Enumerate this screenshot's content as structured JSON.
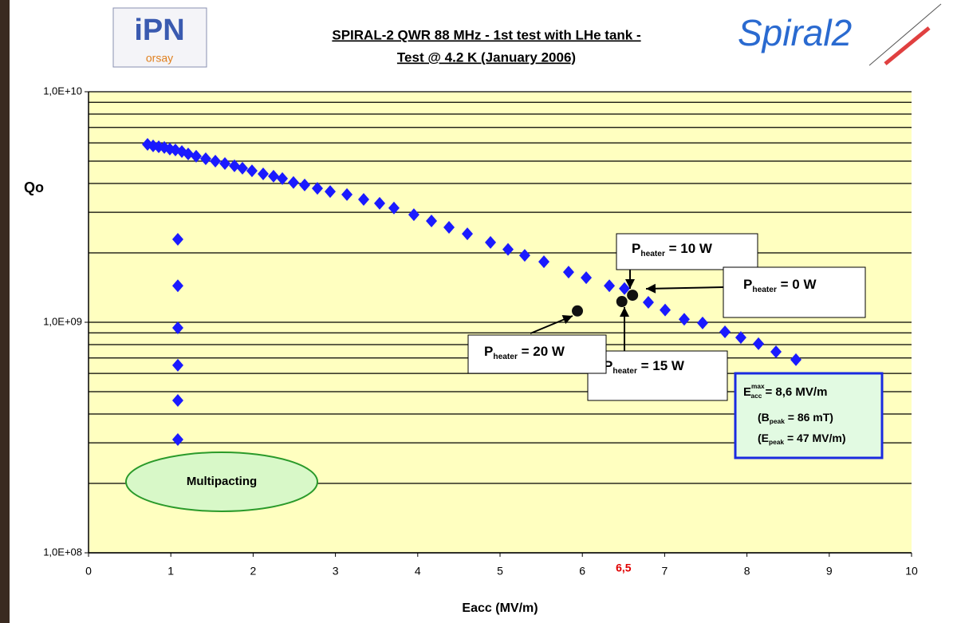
{
  "header": {
    "logo_left": {
      "main": "iPN",
      "sub": "orsay"
    },
    "logo_right": "Spiral2"
  },
  "chart_data": {
    "type": "scatter",
    "title": [
      "SPIRAL-2  QWR 88 MHz - 1st test with LHe tank -",
      "Test @ 4.2 K (January 2006)"
    ],
    "x_label": "Eacc (MV/m)",
    "y_label": "Qo",
    "log_y": true,
    "xlim": [
      0,
      10
    ],
    "xticks": [
      0,
      1,
      2,
      3,
      4,
      5,
      6,
      7,
      8,
      9,
      10
    ],
    "ylim": [
      100000000,
      10000000000
    ],
    "yticks": [
      {
        "value": 100000000,
        "label": "1,0E+08"
      },
      {
        "value": 1000000000,
        "label": "1,0E+09"
      },
      {
        "value": 10000000000,
        "label": "1,0E+10"
      }
    ],
    "minor_yticks": [
      200000000,
      300000000,
      400000000,
      500000000,
      600000000,
      700000000,
      800000000,
      900000000,
      2000000000,
      3000000000,
      4000000000,
      5000000000,
      6000000000,
      7000000000,
      8000000000,
      9000000000
    ],
    "grid": true,
    "plot_background": "#ffffc0",
    "x_marker": {
      "value": 6.5,
      "label": "6,5",
      "color": "#e00000"
    },
    "series": [
      {
        "color": "#1a1aff",
        "marker": "diamond",
        "x": [
          0.717,
          0.785,
          0.853,
          0.921,
          0.988,
          1.056,
          1.134,
          1.211,
          1.308,
          1.424,
          1.541,
          1.657,
          1.773,
          1.87,
          1.986,
          2.122,
          2.248,
          2.355,
          2.49,
          2.626,
          2.781,
          2.936,
          3.14,
          3.343,
          3.537,
          3.711,
          3.953,
          4.167,
          4.38,
          4.603,
          4.884,
          5.097,
          5.3,
          5.533,
          5.833,
          6.047,
          6.328,
          6.512,
          6.802,
          7.006,
          7.238,
          7.461,
          7.733,
          7.926,
          8.14,
          8.353,
          8.595
        ],
        "values": [
          5910000000,
          5820000000,
          5770000000,
          5730000000,
          5640000000,
          5590000000,
          5500000000,
          5370000000,
          5250000000,
          5120000000,
          5000000000,
          4880000000,
          4770000000,
          4660000000,
          4540000000,
          4400000000,
          4300000000,
          4200000000,
          4040000000,
          3940000000,
          3810000000,
          3690000000,
          3580000000,
          3410000000,
          3280000000,
          3130000000,
          2930000000,
          2750000000,
          2580000000,
          2420000000,
          2220000000,
          2070000000,
          1950000000,
          1830000000,
          1650000000,
          1560000000,
          1440000000,
          1400000000,
          1220000000,
          1130000000,
          1030000000,
          993000000,
          909000000,
          859000000,
          807000000,
          745000000,
          688000000
        ]
      },
      {
        "color": "#1a1aff",
        "marker": "diamond",
        "x": [
          1.085,
          1.085,
          1.085,
          1.085,
          1.085,
          1.085
        ],
        "values": [
          2290000000,
          1440000000,
          946000000,
          651000000,
          458000000,
          310000000
        ]
      },
      {
        "color": "#111111",
        "marker": "circle",
        "x": [
          5.94,
          6.48,
          6.61
        ],
        "values": [
          1120000000,
          1230000000,
          1310000000
        ]
      }
    ],
    "annotations": [
      {
        "main": "P",
        "sub": "heater",
        "rest": " = 10 W"
      },
      {
        "main": "P",
        "sub": "heater",
        "rest": " = 0 W"
      },
      {
        "main": "P",
        "sub": "heater",
        "rest": " = 15 W"
      },
      {
        "main": "P",
        "sub": "heater",
        "rest": " = 20 W"
      }
    ],
    "summary_box": {
      "line1": {
        "main": "E",
        "sub": "acc",
        "sup": "max",
        "rest": " = 8,6 MV/m"
      },
      "line2": {
        "main": "(B",
        "sub": "peak",
        "rest": " = 86 mT)"
      },
      "line3": {
        "main": "(E",
        "sub": "peak",
        "rest": " = 47 MV/m)"
      }
    },
    "region_label": "Multipacting"
  }
}
